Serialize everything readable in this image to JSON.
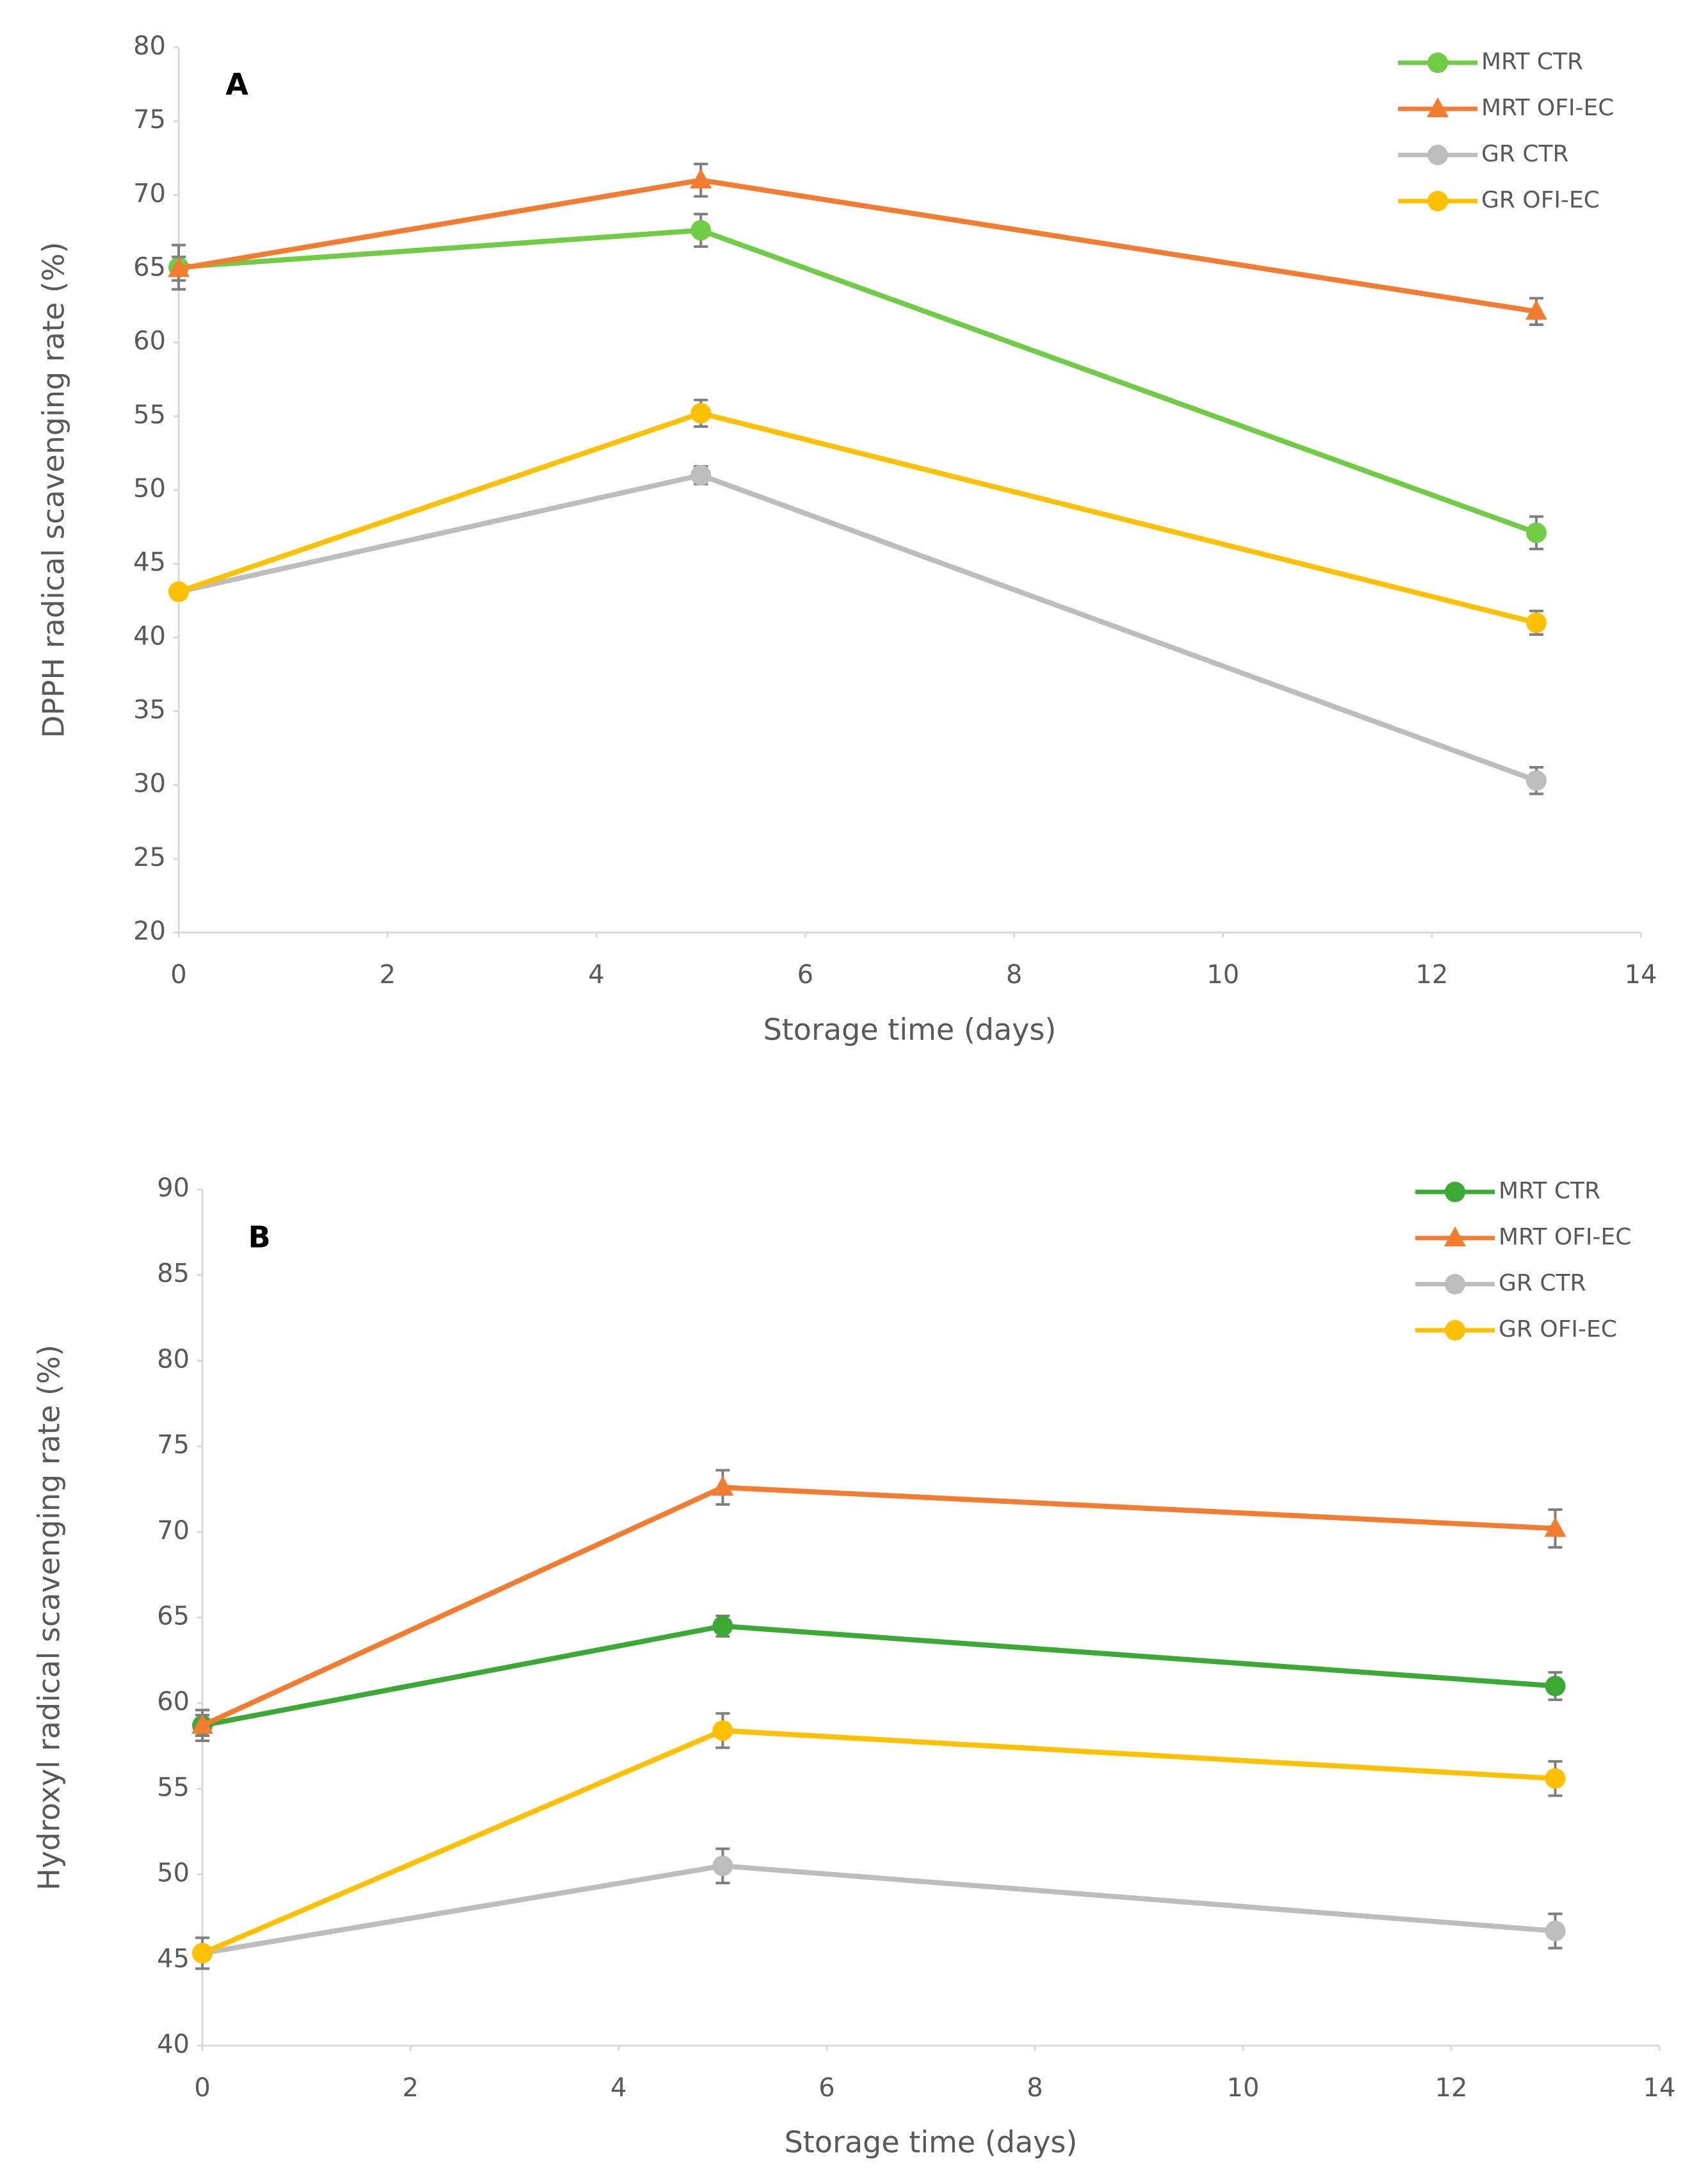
{
  "chart_data": [
    {
      "type": "line",
      "annotation": "A",
      "x_label": "Storage time (days)",
      "y_label": "DPPH radical scavenging rate (%)",
      "x": [
        0,
        5,
        13
      ],
      "xlim": [
        0,
        14
      ],
      "xticks": [
        0,
        2,
        4,
        6,
        8,
        10,
        12,
        14
      ],
      "ylim": [
        20,
        80
      ],
      "yticks": [
        20,
        25,
        30,
        35,
        40,
        45,
        50,
        55,
        60,
        65,
        70,
        75,
        80
      ],
      "grid": false,
      "legend": "top-right",
      "series": [
        {
          "name": "MRT CTR",
          "color": "#70cc44",
          "marker": "circle",
          "values": [
            65.1,
            67.6,
            47.1
          ],
          "errors": [
            1.5,
            1.1,
            1.1
          ]
        },
        {
          "name": "MRT OFI-EC",
          "color": "#f47c30",
          "marker": "triangle",
          "values": [
            65.0,
            71.0,
            62.1
          ],
          "errors": [
            0.8,
            1.1,
            0.9
          ]
        },
        {
          "name": "GR CTR",
          "color": "#bdbdbd",
          "marker": "circle",
          "values": [
            43.1,
            51.0,
            30.3
          ],
          "errors": [
            0.4,
            0.6,
            0.9
          ]
        },
        {
          "name": "GR OFI-EC",
          "color": "#ffc000",
          "marker": "circle",
          "values": [
            43.1,
            55.2,
            41.0
          ],
          "errors": [
            0.3,
            0.9,
            0.8
          ]
        }
      ]
    },
    {
      "type": "line",
      "annotation": "B",
      "x_label": "Storage time (days)",
      "y_label": "Hydroxyl radical scavenging rate (%)",
      "x": [
        0,
        5,
        13
      ],
      "xlim": [
        0,
        14
      ],
      "xticks": [
        0,
        2,
        4,
        6,
        8,
        10,
        12,
        14
      ],
      "ylim": [
        40,
        90
      ],
      "yticks": [
        40,
        45,
        50,
        55,
        60,
        65,
        70,
        75,
        80,
        85,
        90
      ],
      "grid": false,
      "legend": "top-right",
      "series": [
        {
          "name": "MRT CTR",
          "color": "#3aaa35",
          "marker": "circle",
          "values": [
            58.7,
            64.5,
            61.0
          ],
          "errors": [
            0.9,
            0.6,
            0.8
          ]
        },
        {
          "name": "MRT OFI-EC",
          "color": "#f47c30",
          "marker": "triangle",
          "values": [
            58.7,
            72.6,
            70.2
          ],
          "errors": [
            0.6,
            1.0,
            1.1
          ]
        },
        {
          "name": "GR CTR",
          "color": "#bdbdbd",
          "marker": "circle",
          "values": [
            45.4,
            50.5,
            46.7
          ],
          "errors": [
            0.9,
            1.0,
            1.0
          ]
        },
        {
          "name": "GR OFI-EC",
          "color": "#ffc000",
          "marker": "circle",
          "values": [
            45.4,
            58.4,
            55.6
          ],
          "errors": [
            0.3,
            1.0,
            1.0
          ]
        }
      ]
    }
  ]
}
